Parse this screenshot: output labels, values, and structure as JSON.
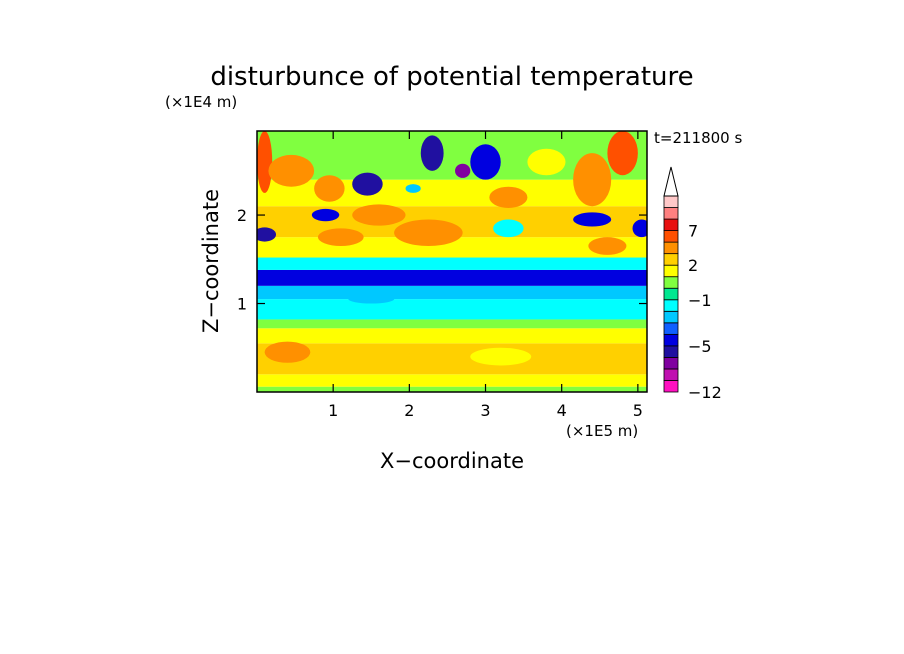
{
  "chart_data": {
    "type": "heatmap",
    "title": "disturbunce of potential temperature",
    "xlabel": "X−coordinate",
    "ylabel": "Z−coordinate",
    "x_unit": "(×1E5 m)",
    "y_unit": "(×1E4 m)",
    "time_label": "t=211800 s",
    "x_range": [
      0,
      5.12
    ],
    "y_range": [
      0,
      2.95
    ],
    "x_ticks": [
      "1",
      "2",
      "3",
      "4",
      "5"
    ],
    "y_ticks": [
      "1",
      "2"
    ],
    "x_tick_values": [
      1,
      2,
      3,
      4,
      5
    ],
    "y_tick_values": [
      1,
      2
    ],
    "colorbar": {
      "levels": [
        -12,
        -10,
        -8,
        -6,
        -5,
        -4,
        -3,
        -2,
        -1,
        0,
        1,
        2,
        3,
        5,
        7,
        9,
        11
      ],
      "colors": [
        "#ff10c0",
        "#c010b0",
        "#8000a0",
        "#2010a0",
        "#0000e0",
        "#1060ff",
        "#00c8ff",
        "#00ffff",
        "#00e890",
        "#80ff40",
        "#ffff00",
        "#ffd000",
        "#ff9000",
        "#ff5000",
        "#e81010",
        "#ff8080",
        "#ffc8c8"
      ],
      "tick_labels": [
        "−12",
        "−5",
        "−1",
        "2",
        "7"
      ],
      "tick_values": [
        -12,
        -5,
        -1,
        2,
        7
      ],
      "extend": "max"
    },
    "bands": [
      {
        "z": [
          0.0,
          0.06
        ],
        "value": 0.5
      },
      {
        "z": [
          0.06,
          0.2
        ],
        "value": 1.5
      },
      {
        "z": [
          0.2,
          0.55
        ],
        "value": 2.5
      },
      {
        "z": [
          0.55,
          0.72
        ],
        "value": 1.5
      },
      {
        "z": [
          0.72,
          0.82
        ],
        "value": 0.5
      },
      {
        "z": [
          0.82,
          1.05
        ],
        "value": -1.5
      },
      {
        "z": [
          1.05,
          1.2
        ],
        "value": -2.5
      },
      {
        "z": [
          1.2,
          1.38
        ],
        "value": -4.5
      },
      {
        "z": [
          1.38,
          1.52
        ],
        "value": -1.5
      },
      {
        "z": [
          1.52,
          1.75
        ],
        "value": 1.5
      },
      {
        "z": [
          1.75,
          2.1
        ],
        "value": 2.5
      },
      {
        "z": [
          2.1,
          2.4
        ],
        "value": 1.5
      },
      {
        "z": [
          2.4,
          2.95
        ],
        "value": 0.5
      }
    ],
    "features": [
      {
        "x": 0.1,
        "z": 2.6,
        "rx": 0.1,
        "rz": 0.35,
        "value": 5.5
      },
      {
        "x": 0.45,
        "z": 2.5,
        "rx": 0.3,
        "rz": 0.18,
        "value": 3.5
      },
      {
        "x": 0.1,
        "z": 1.78,
        "rx": 0.15,
        "rz": 0.08,
        "value": -5.5
      },
      {
        "x": 0.95,
        "z": 2.3,
        "rx": 0.2,
        "rz": 0.15,
        "value": 3.5
      },
      {
        "x": 0.9,
        "z": 2.0,
        "rx": 0.18,
        "rz": 0.07,
        "value": -4.5
      },
      {
        "x": 1.45,
        "z": 2.35,
        "rx": 0.2,
        "rz": 0.13,
        "value": -5.5
      },
      {
        "x": 1.6,
        "z": 2.0,
        "rx": 0.35,
        "rz": 0.12,
        "value": 3.5
      },
      {
        "x": 1.1,
        "z": 1.75,
        "rx": 0.3,
        "rz": 0.1,
        "value": 3.5
      },
      {
        "x": 2.3,
        "z": 2.7,
        "rx": 0.15,
        "rz": 0.2,
        "value": -5.5
      },
      {
        "x": 2.7,
        "z": 2.5,
        "rx": 0.1,
        "rz": 0.08,
        "value": -7.0
      },
      {
        "x": 2.25,
        "z": 1.8,
        "rx": 0.45,
        "rz": 0.15,
        "value": 3.5
      },
      {
        "x": 2.05,
        "z": 2.3,
        "rx": 0.1,
        "rz": 0.05,
        "value": -2.5
      },
      {
        "x": 3.0,
        "z": 2.6,
        "rx": 0.2,
        "rz": 0.2,
        "value": -4.5
      },
      {
        "x": 3.3,
        "z": 2.2,
        "rx": 0.25,
        "rz": 0.12,
        "value": 3.5
      },
      {
        "x": 3.3,
        "z": 1.85,
        "rx": 0.2,
        "rz": 0.1,
        "value": -1.5
      },
      {
        "x": 3.8,
        "z": 2.6,
        "rx": 0.25,
        "rz": 0.15,
        "value": 1.5
      },
      {
        "x": 4.4,
        "z": 2.4,
        "rx": 0.25,
        "rz": 0.3,
        "value": 3.5
      },
      {
        "x": 4.4,
        "z": 1.95,
        "rx": 0.25,
        "rz": 0.08,
        "value": -4.5
      },
      {
        "x": 4.8,
        "z": 2.7,
        "rx": 0.2,
        "rz": 0.25,
        "value": 5.5
      },
      {
        "x": 5.05,
        "z": 1.85,
        "rx": 0.12,
        "rz": 0.1,
        "value": -4.5
      },
      {
        "x": 4.6,
        "z": 1.65,
        "rx": 0.25,
        "rz": 0.1,
        "value": 3.5
      },
      {
        "x": 1.5,
        "z": 1.05,
        "rx": 0.3,
        "rz": 0.05,
        "value": -2.5
      },
      {
        "x": 3.2,
        "z": 0.4,
        "rx": 0.4,
        "rz": 0.1,
        "value": 1.5
      },
      {
        "x": 0.4,
        "z": 0.45,
        "rx": 0.3,
        "rz": 0.12,
        "value": 3.5
      }
    ]
  }
}
